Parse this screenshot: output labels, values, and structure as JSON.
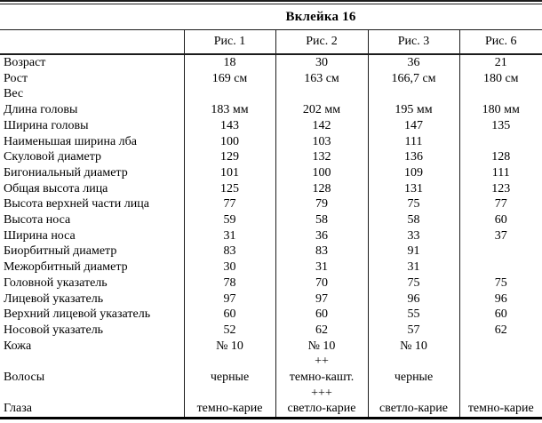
{
  "title": "Вклейка 16",
  "table": {
    "column_headers": [
      "Рис. 1",
      "Рис. 2",
      "Рис. 3",
      "Рис. 6"
    ],
    "rows": [
      {
        "label": "Возраст",
        "c1": "18",
        "c2": "30",
        "c3": "36",
        "c4": "21"
      },
      {
        "label": "Рост",
        "c1": "169 см",
        "c2": "163 см",
        "c3": "166,7 см",
        "c4": "180 см"
      },
      {
        "label": "Вес",
        "c1": "",
        "c2": "",
        "c3": "",
        "c4": ""
      },
      {
        "label": "Длина головы",
        "c1": "183 мм",
        "c2": "202 мм",
        "c3": "195 мм",
        "c4": "180 мм"
      },
      {
        "label": "Ширина головы",
        "c1": "143",
        "c2": "142",
        "c3": "147",
        "c4": "135"
      },
      {
        "label": "Наименьшая ширина лба",
        "c1": "100",
        "c2": "103",
        "c3": "111",
        "c4": ""
      },
      {
        "label": "Скуловой диаметр",
        "c1": "129",
        "c2": "132",
        "c3": "136",
        "c4": "128"
      },
      {
        "label": "Бигониальный диаметр",
        "c1": "101",
        "c2": "100",
        "c3": "109",
        "c4": "111"
      },
      {
        "label": "Общая высота лица",
        "c1": "125",
        "c2": "128",
        "c3": "131",
        "c4": "123"
      },
      {
        "label": "Высота верхней части лица",
        "c1": "77",
        "c2": "79",
        "c3": "75",
        "c4": "77"
      },
      {
        "label": "Высота носа",
        "c1": "59",
        "c2": "58",
        "c3": "58",
        "c4": "60"
      },
      {
        "label": "Ширина носа",
        "c1": "31",
        "c2": "36",
        "c3": "33",
        "c4": "37"
      },
      {
        "label": "Биорбитный диаметр",
        "c1": "83",
        "c2": "83",
        "c3": "91",
        "c4": ""
      },
      {
        "label": "Межорбитный диаметр",
        "c1": "30",
        "c2": "31",
        "c3": "31",
        "c4": ""
      },
      {
        "label": "Головной указатель",
        "c1": "78",
        "c2": "70",
        "c3": "75",
        "c4": "75"
      },
      {
        "label": "Лицевой указатель",
        "c1": "97",
        "c2": "97",
        "c3": "96",
        "c4": "96"
      },
      {
        "label": "Верхний лицевой указатель",
        "c1": "60",
        "c2": "60",
        "c3": "55",
        "c4": "60"
      },
      {
        "label": "Носовой указатель",
        "c1": "52",
        "c2": "62",
        "c3": "57",
        "c4": "62"
      },
      {
        "label": "Кожа",
        "c1": "№ 10",
        "c2": "№ 10",
        "c3": "№ 10",
        "c4": ""
      },
      {
        "label": "",
        "c1": "",
        "c2": "++",
        "c3": "",
        "c4": ""
      },
      {
        "label": "Волосы",
        "c1": "черные",
        "c2": "темно-кашт.",
        "c3": "черные",
        "c4": ""
      },
      {
        "label": "",
        "c1": "",
        "c2": "+++",
        "c3": "",
        "c4": ""
      },
      {
        "label": "Глаза",
        "c1": "темно-карие",
        "c2": "светло-карие",
        "c3": "светло-карие",
        "c4": "темно-карие"
      }
    ]
  }
}
